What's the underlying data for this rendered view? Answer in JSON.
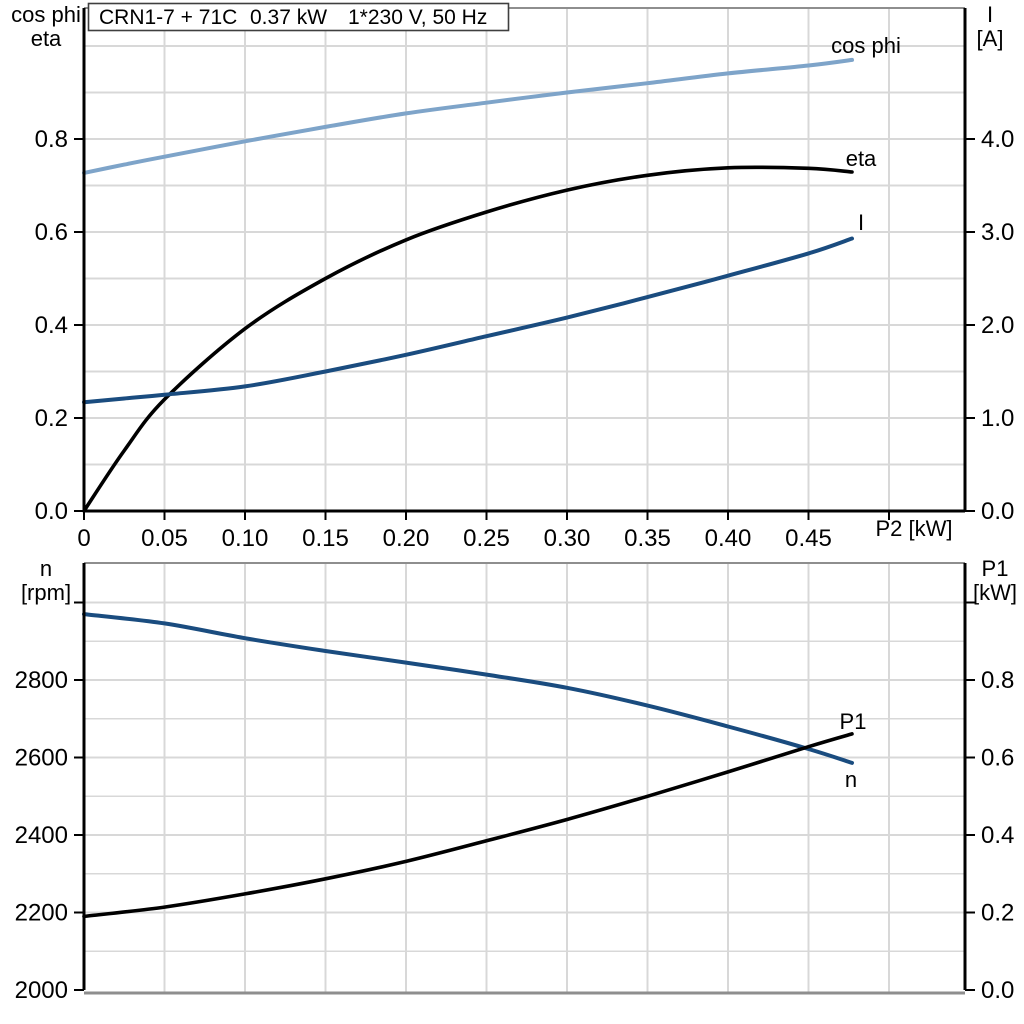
{
  "header": {
    "title_parts": [
      "CRN1-7 + 71C",
      "0.37 kW",
      "1*230 V, 50 Hz"
    ]
  },
  "colors": {
    "light_blue": "#7ea4c9",
    "dark_blue": "#1a4c7f",
    "black": "#000000",
    "grid": "#d8d8d8",
    "frame": "#8e8e8e",
    "title_border": "#3f3f3f"
  },
  "chart_data": [
    {
      "type": "line",
      "name": "motor-electrical-curves",
      "x_axis": {
        "label": "P2 [kW]",
        "min": 0,
        "max": 0.5472,
        "grid": [
          0.05,
          0.1,
          0.15,
          0.2,
          0.25,
          0.3,
          0.35,
          0.4,
          0.45,
          0.5
        ],
        "ticks": [
          {
            "v": 0,
            "label": "0"
          },
          {
            "v": 0.05,
            "label": "0.05"
          },
          {
            "v": 0.1,
            "label": "0.10"
          },
          {
            "v": 0.15,
            "label": "0.15"
          },
          {
            "v": 0.2,
            "label": "0.20"
          },
          {
            "v": 0.25,
            "label": "0.25"
          },
          {
            "v": 0.3,
            "label": "0.30"
          },
          {
            "v": 0.35,
            "label": "0.35"
          },
          {
            "v": 0.4,
            "label": "0.40"
          },
          {
            "v": 0.45,
            "label": "0.45"
          },
          {
            "v": 0.5,
            "label": ""
          }
        ]
      },
      "left_axis": {
        "title_lines": [
          "cos phi",
          "eta"
        ],
        "min": 0,
        "max": 1.0817,
        "grid": [
          0.1,
          0.2,
          0.3,
          0.4,
          0.5,
          0.6,
          0.7,
          0.8,
          0.9,
          1.0
        ],
        "ticks": [
          {
            "v": 0,
            "label": "0.0"
          },
          {
            "v": 0.2,
            "label": "0.2"
          },
          {
            "v": 0.4,
            "label": "0.4"
          },
          {
            "v": 0.6,
            "label": "0.6"
          },
          {
            "v": 0.8,
            "label": "0.8"
          }
        ]
      },
      "right_axis": {
        "title_lines": [
          "I",
          "[A]"
        ],
        "min": 0,
        "max": 5.4086,
        "ticks": [
          {
            "v": 0,
            "label": "0.0"
          },
          {
            "v": 1,
            "label": "1.0"
          },
          {
            "v": 2,
            "label": "2.0"
          },
          {
            "v": 3,
            "label": "3.0"
          },
          {
            "v": 4,
            "label": "4.0"
          }
        ]
      },
      "x": [
        0,
        0.025,
        0.05,
        0.1,
        0.15,
        0.2,
        0.25,
        0.3,
        0.35,
        0.4,
        0.45,
        0.477
      ],
      "series": [
        {
          "label": "cos phi",
          "axis": "left",
          "color_key": "light_blue",
          "values": [
            0.727,
            0.745,
            0.762,
            0.795,
            0.826,
            0.855,
            0.878,
            0.9,
            0.92,
            0.941,
            0.958,
            0.97
          ]
        },
        {
          "label": "eta",
          "axis": "left",
          "color_key": "black",
          "values": [
            0,
            0.13,
            0.24,
            0.392,
            0.5,
            0.583,
            0.643,
            0.69,
            0.722,
            0.738,
            0.737,
            0.729
          ]
        },
        {
          "label": "I",
          "axis": "right",
          "color_key": "dark_blue",
          "values": [
            1.17,
            1.21,
            1.25,
            1.34,
            1.5,
            1.68,
            1.88,
            2.08,
            2.3,
            2.53,
            2.77,
            2.93
          ]
        }
      ]
    },
    {
      "type": "line",
      "name": "speed-and-input-power-curves",
      "x_axis": {
        "label": "",
        "min": 0,
        "max": 0.5472,
        "grid": [
          0.05,
          0.1,
          0.15,
          0.2,
          0.25,
          0.3,
          0.35,
          0.4,
          0.45,
          0.5
        ],
        "ticks": []
      },
      "left_axis": {
        "title_lines": [
          "n",
          "[rpm]"
        ],
        "min": 2000,
        "max": 3102,
        "grid": [
          2100,
          2200,
          2300,
          2400,
          2500,
          2600,
          2700,
          2800,
          2900,
          3000
        ],
        "ticks": [
          {
            "v": 2000,
            "label": "2000"
          },
          {
            "v": 2200,
            "label": "2200"
          },
          {
            "v": 2400,
            "label": "2400"
          },
          {
            "v": 2600,
            "label": "2600"
          },
          {
            "v": 2800,
            "label": "2800"
          },
          {
            "v": 3000,
            "label": ""
          }
        ]
      },
      "right_axis": {
        "title_lines": [
          "P1",
          "[kW]"
        ],
        "min": 0,
        "max": 1.102,
        "ticks": [
          {
            "v": 0,
            "label": "0.0"
          },
          {
            "v": 0.2,
            "label": "0.2"
          },
          {
            "v": 0.4,
            "label": "0.4"
          },
          {
            "v": 0.6,
            "label": "0.6"
          },
          {
            "v": 0.8,
            "label": "0.8"
          },
          {
            "v": 1.0,
            "label": ""
          }
        ]
      },
      "x": [
        0,
        0.05,
        0.1,
        0.15,
        0.2,
        0.25,
        0.3,
        0.35,
        0.4,
        0.45,
        0.477
      ],
      "series": [
        {
          "label": "n",
          "axis": "left",
          "color_key": "dark_blue",
          "values": [
            2970,
            2946,
            2908,
            2875,
            2845,
            2814,
            2780,
            2734,
            2680,
            2622,
            2586
          ]
        },
        {
          "label": "P1",
          "axis": "right",
          "color_key": "black",
          "values": [
            0.19,
            0.214,
            0.248,
            0.287,
            0.332,
            0.385,
            0.44,
            0.5,
            0.563,
            0.628,
            0.661
          ]
        }
      ]
    }
  ]
}
